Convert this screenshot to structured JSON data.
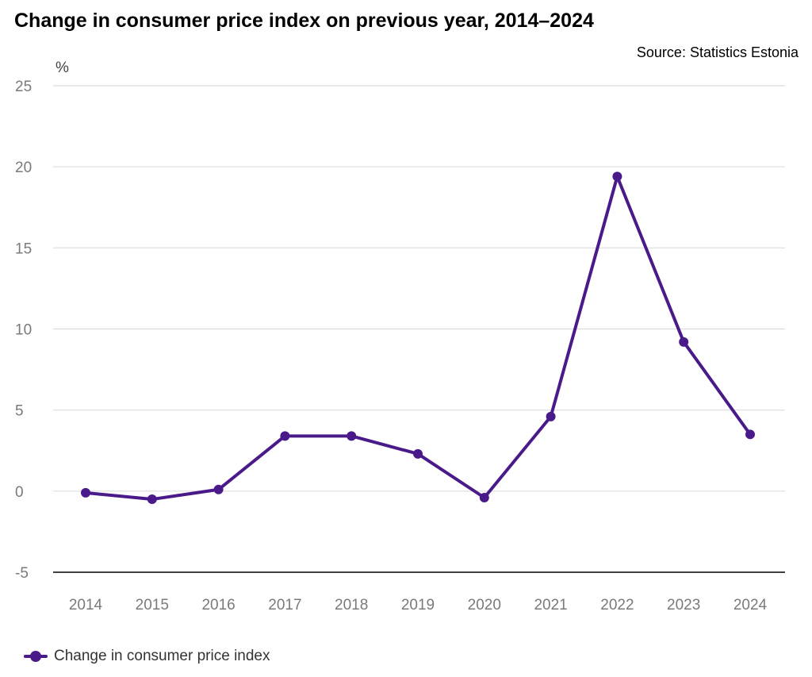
{
  "chart_data": {
    "type": "line",
    "title": "Change in consumer price index on previous year, 2014–2024",
    "source": "Source: Statistics Estonia",
    "ylabel": "%",
    "categories": [
      "2014",
      "2015",
      "2016",
      "2017",
      "2018",
      "2019",
      "2020",
      "2021",
      "2022",
      "2023",
      "2024"
    ],
    "series": [
      {
        "name": "Change in consumer price index",
        "color": "#4a1a8a",
        "values": [
          -0.1,
          -0.5,
          0.1,
          3.4,
          3.4,
          2.3,
          -0.4,
          4.6,
          19.4,
          9.2,
          3.5
        ]
      }
    ],
    "ylim": [
      -5,
      25
    ],
    "yticks": [
      "25",
      "20",
      "15",
      "10",
      "5",
      "0",
      "-5"
    ],
    "grid": true,
    "legend": "bottom-left",
    "gridline_color": "#dddddd",
    "baseline_color": "#000000"
  }
}
